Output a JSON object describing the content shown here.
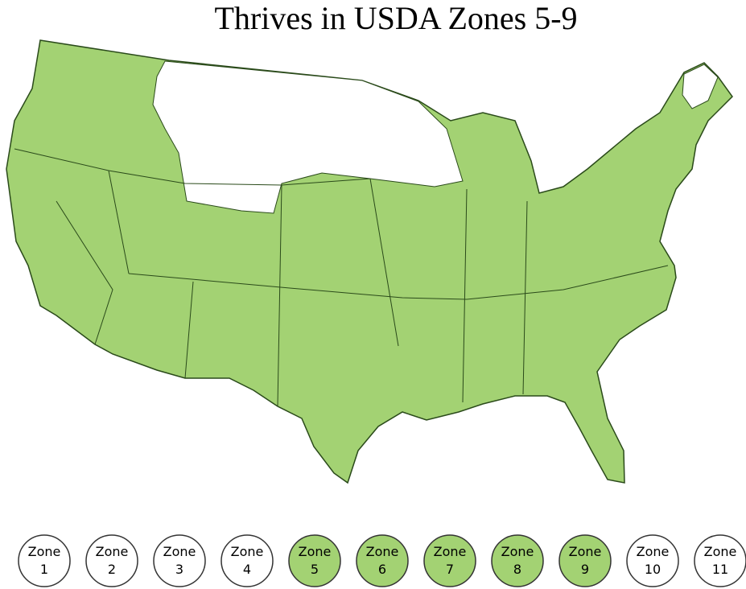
{
  "title": "Thrives in USDA Zones 5-9",
  "zones": [
    {
      "label": "Zone",
      "number": "1",
      "active": false
    },
    {
      "label": "Zone",
      "number": "2",
      "active": false
    },
    {
      "label": "Zone",
      "number": "3",
      "active": false
    },
    {
      "label": "Zone",
      "number": "4",
      "active": false
    },
    {
      "label": "Zone",
      "number": "5",
      "active": true
    },
    {
      "label": "Zone",
      "number": "6",
      "active": true
    },
    {
      "label": "Zone",
      "number": "7",
      "active": true
    },
    {
      "label": "Zone",
      "number": "8",
      "active": true
    },
    {
      "label": "Zone",
      "number": "9",
      "active": true
    },
    {
      "label": "Zone",
      "number": "10",
      "active": false
    },
    {
      "label": "Zone",
      "number": "11",
      "active": false
    }
  ]
}
